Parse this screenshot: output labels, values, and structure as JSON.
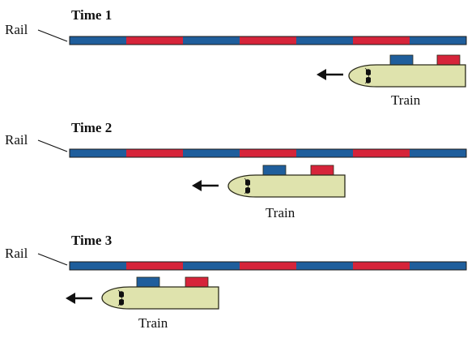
{
  "colors": {
    "blue_segment": "#1f5e9c",
    "red_segment": "#d6243a",
    "rail_outline": "#1a1a1a",
    "train_body": "#dfe3ad",
    "train_outline": "#2a2a1a",
    "magnet_blue": "#1f5e9c",
    "magnet_red": "#d6243a",
    "arrow": "#111111"
  },
  "rail_pattern": [
    "blue",
    "red",
    "blue",
    "red",
    "blue",
    "red",
    "blue"
  ],
  "train_magnets": [
    "blue",
    "red"
  ],
  "panels": [
    {
      "title": "Time 1",
      "rail_label": "Rail",
      "train_label": "Train",
      "direction": "left",
      "icons": {
        "arrow": "arrow-left-icon",
        "window": "train-window-icon"
      }
    },
    {
      "title": "Time 2",
      "rail_label": "Rail",
      "train_label": "Train",
      "direction": "left",
      "icons": {
        "arrow": "arrow-left-icon",
        "window": "train-window-icon"
      }
    },
    {
      "title": "Time 3",
      "rail_label": "Rail",
      "train_label": "Train",
      "direction": "left",
      "icons": {
        "arrow": "arrow-left-icon",
        "window": "train-window-icon"
      }
    }
  ]
}
